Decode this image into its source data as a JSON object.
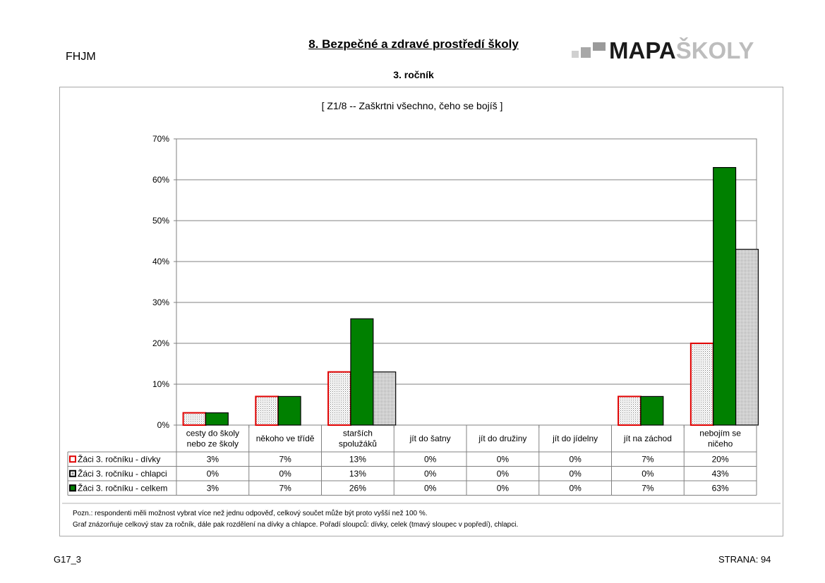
{
  "header": {
    "school_code": "FHJM",
    "title": "8. Bezpečné a zdravé prostředí školy",
    "subtitle": "3. ročník",
    "logo_text_bold": "MAPA",
    "logo_text_light": "ŠKOLY"
  },
  "notes": {
    "line1": "Pozn.: respondenti měli možnost vybrat  více než jednu odpověď, celkový součet může být proto vyšší než 100 %.",
    "line2": "Graf znázorňuje celkový stav za ročník, dále pak rozdělení na dívky a chlapce. Pořadí sloupců: dívky, celek (tmavý sloupec v popředí), chlapci."
  },
  "footer": {
    "code": "G17_3",
    "page": "STRANA: 94"
  },
  "colors": {
    "girls_border": "#e00000",
    "boys_border": "#000000",
    "total_fill": "#008000",
    "dots": "#808080"
  },
  "chart_data": {
    "type": "bar",
    "title": "[ Z1/8 -- Zaškrtni všechno, čeho se bojíš ]",
    "categories": [
      [
        "cesty do školy",
        "nebo ze školy"
      ],
      [
        "někoho ve třídě"
      ],
      [
        "starších",
        "spolužáků"
      ],
      [
        "jít do šatny"
      ],
      [
        "jít do družiny"
      ],
      [
        "jít do jídelny"
      ],
      [
        "jít na záchod"
      ],
      [
        "nebojím se",
        "ničeho"
      ]
    ],
    "series": [
      {
        "name": "Žáci 3. ročníku - dívky",
        "values": [
          3,
          7,
          13,
          0,
          0,
          0,
          7,
          20
        ],
        "labels": [
          "3%",
          "7%",
          "13%",
          "0%",
          "0%",
          "0%",
          "7%",
          "20%"
        ]
      },
      {
        "name": "Žáci 3. ročníku - chlapci",
        "values": [
          0,
          0,
          13,
          0,
          0,
          0,
          0,
          43
        ],
        "labels": [
          "0%",
          "0%",
          "13%",
          "0%",
          "0%",
          "0%",
          "0%",
          "43%"
        ]
      },
      {
        "name": "Žáci 3. ročníku - celkem",
        "values": [
          3,
          7,
          26,
          0,
          0,
          0,
          7,
          63
        ],
        "labels": [
          "3%",
          "7%",
          "26%",
          "0%",
          "0%",
          "0%",
          "7%",
          "63%"
        ]
      }
    ],
    "y_ticks": [
      "0%",
      "10%",
      "20%",
      "30%",
      "40%",
      "50%",
      "60%",
      "70%"
    ],
    "ylim": [
      0,
      70
    ],
    "grid": true,
    "legend_placement": "data-table"
  }
}
